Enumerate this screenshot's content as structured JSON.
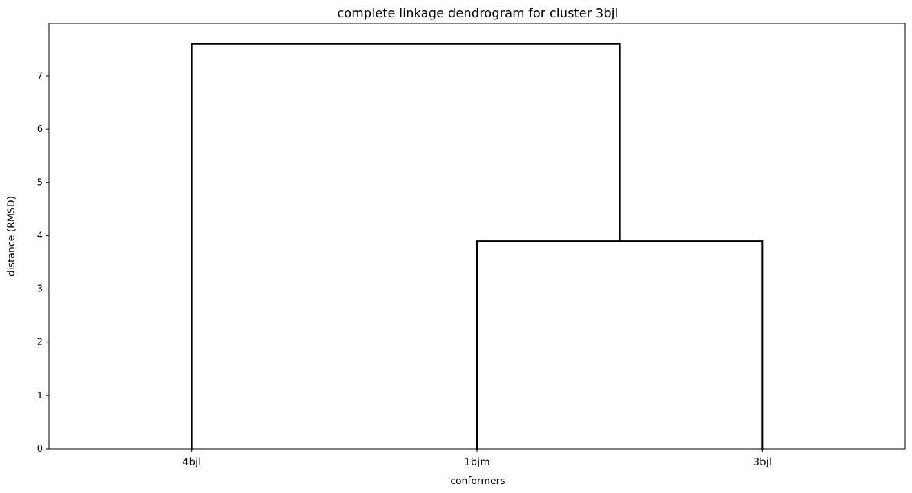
{
  "chart_data": {
    "type": "dendrogram",
    "title": "complete linkage dendrogram for cluster 3bjl",
    "xlabel": "conformers",
    "ylabel": "distance (RMSD)",
    "leaves": [
      "4bjl",
      "1bjm",
      "3bjl"
    ],
    "links": [
      {
        "id": "link-1bjm-3bjl",
        "left_leaf": "1bjm",
        "right_leaf": "3bjl",
        "height": 3.9
      },
      {
        "id": "link-root",
        "left_leaf": "4bjl",
        "right_cluster": "link-1bjm-3bjl",
        "height": 7.6
      }
    ],
    "y_ticks": [
      0,
      1,
      2,
      3,
      4,
      5,
      6,
      7
    ],
    "ylim": [
      0,
      8
    ],
    "grid": false,
    "line_color": "#000000"
  }
}
